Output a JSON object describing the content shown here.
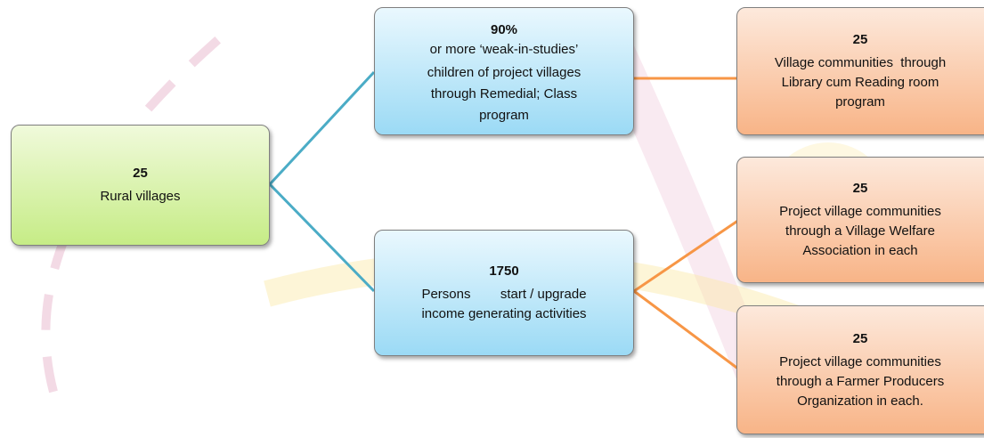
{
  "nodes": [
    {
      "value": "25",
      "lines": [
        "Rural villages"
      ]
    },
    {
      "value": "90%",
      "lines": [
        "or more ‘weak-in-studies’",
        "children of project villages",
        "through Remedial; Class",
        "program"
      ]
    },
    {
      "value": "1750",
      "lines": [
        "Persons        start / upgrade",
        "income generating activities"
      ]
    },
    {
      "value": "25",
      "lines": [
        "Village communities  through",
        "Library cum Reading room",
        "program"
      ]
    },
    {
      "value": "25",
      "lines": [
        "Project village communities",
        "through a Village Welfare",
        "Association in each"
      ]
    },
    {
      "value": "25",
      "lines": [
        "Project village communities",
        "through a Farmer Producers",
        "Organization in each."
      ]
    }
  ]
}
